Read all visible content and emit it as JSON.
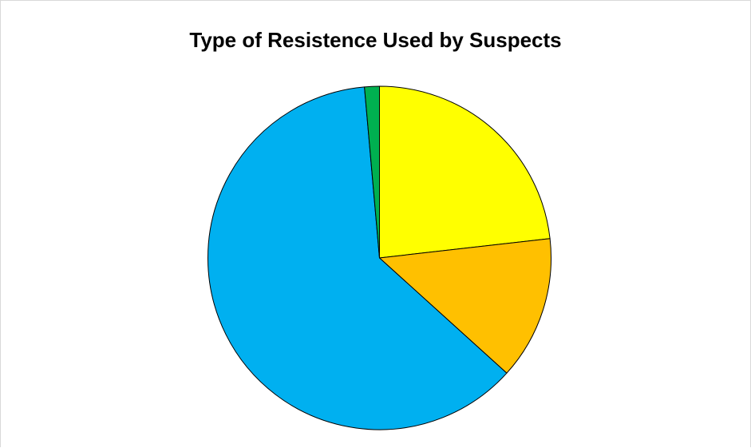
{
  "chart_data": {
    "type": "pie",
    "title": "Type of Resistence Used by Suspects",
    "slices": [
      {
        "value": 23.2,
        "color": "#FFFF00"
      },
      {
        "value": 13.5,
        "color": "#FFC000"
      },
      {
        "value": 61.9,
        "color": "#00B0F0"
      },
      {
        "value": 1.4,
        "color": "#00B050"
      }
    ],
    "start_angle_deg": 0,
    "direction": "clockwise",
    "legend": "none"
  }
}
